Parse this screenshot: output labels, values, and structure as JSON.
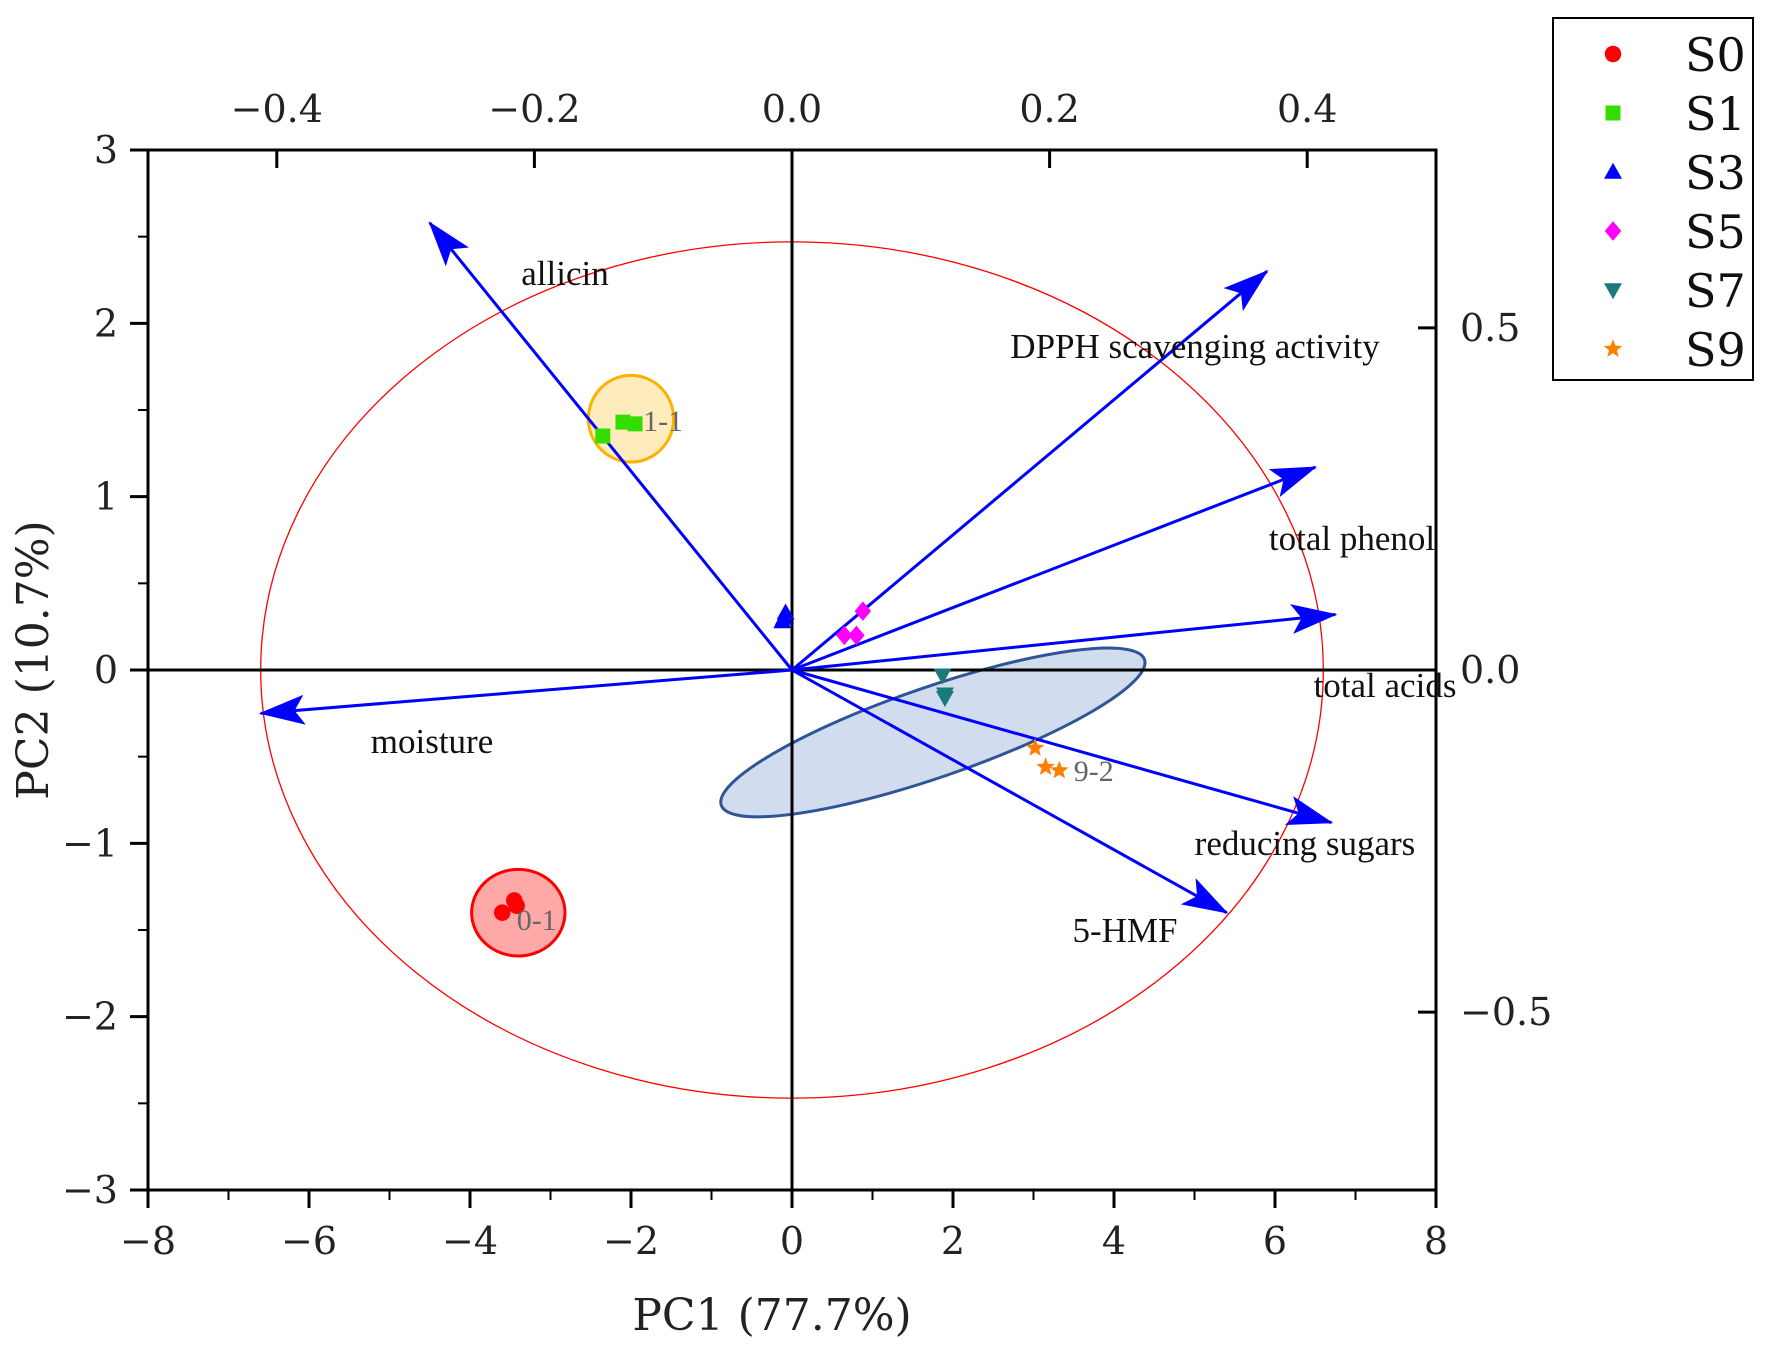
{
  "chart_data": {
    "type": "scatter",
    "title": "",
    "xlabel": "PC1 (77.7%)",
    "ylabel": "PC2 (10.7%)",
    "xlim": [
      -8,
      8
    ],
    "ylim": [
      -3,
      3
    ],
    "x_ticks": [
      -8,
      -6,
      -4,
      -2,
      0,
      2,
      4,
      6,
      8
    ],
    "x_tick_labels": [
      "−8",
      "−6",
      "−4",
      "−2",
      "0",
      "2",
      "4",
      "6",
      "8"
    ],
    "y_ticks": [
      -3,
      -2,
      -1,
      0,
      1,
      2,
      3
    ],
    "y_tick_labels": [
      "−3",
      "−2",
      "−1",
      "0",
      "1",
      "2",
      "3"
    ],
    "top_axis": {
      "range": [
        -0.5,
        0.5
      ],
      "ticks": [
        -0.4,
        -0.2,
        0.0,
        0.2,
        0.4
      ],
      "tick_labels": [
        "−0.4",
        "−0.2",
        "0.0",
        "0.2",
        "0.4"
      ]
    },
    "right_axis": {
      "range": [
        -0.76,
        0.76
      ],
      "ticks": [
        -0.5,
        0.0,
        0.5
      ],
      "tick_labels": [
        "−0.5",
        "0.0",
        "0.5"
      ]
    },
    "grid": false,
    "legend_position": "top-right, outside",
    "series": [
      {
        "name": "S0",
        "marker": "circle",
        "color": "#ff0000",
        "points": [
          [
            -3.6,
            -1.4
          ],
          [
            -3.45,
            -1.33
          ],
          [
            -3.42,
            -1.36
          ]
        ]
      },
      {
        "name": "S1",
        "marker": "square",
        "color": "#33dd00",
        "points": [
          [
            -2.35,
            1.35
          ],
          [
            -2.1,
            1.43
          ],
          [
            -1.95,
            1.42
          ]
        ]
      },
      {
        "name": "S3",
        "marker": "triangle-up",
        "color": "#0000ff",
        "points": [
          [
            -0.12,
            0.28
          ],
          [
            -0.08,
            0.33
          ],
          [
            -0.1,
            0.3
          ]
        ]
      },
      {
        "name": "S5",
        "marker": "diamond",
        "color": "#ff00ff",
        "points": [
          [
            0.65,
            0.2
          ],
          [
            0.8,
            0.2
          ],
          [
            0.88,
            0.34
          ]
        ]
      },
      {
        "name": "S7",
        "marker": "triangle-down",
        "color": "#1a7a7a",
        "points": [
          [
            1.87,
            -0.03
          ],
          [
            1.9,
            -0.14
          ],
          [
            1.9,
            -0.16
          ]
        ]
      },
      {
        "name": "S9",
        "marker": "star",
        "color": "#ff8000",
        "points": [
          [
            3.02,
            -0.45
          ],
          [
            3.15,
            -0.56
          ],
          [
            3.32,
            -0.58
          ]
        ]
      }
    ],
    "loadings": [
      {
        "label": "allicin",
        "x": -4.5,
        "y": 2.58
      },
      {
        "label": "DPPH scavenging activity",
        "x": 5.9,
        "y": 2.3
      },
      {
        "label": "total phenol",
        "x": 6.5,
        "y": 1.17
      },
      {
        "label": "total acids",
        "x": 6.75,
        "y": 0.32
      },
      {
        "label": "moisture",
        "x": -6.6,
        "y": -0.25
      },
      {
        "label": "reducing sugars",
        "x": 6.7,
        "y": -0.88
      },
      {
        "label": "5-HMF",
        "x": 5.4,
        "y": -1.4
      }
    ],
    "confidence_ellipse": {
      "center": [
        0,
        0
      ],
      "rx": 6.6,
      "ry": 2.47,
      "color": "#ff0000"
    },
    "group_ellipses": [
      {
        "label": "0-1",
        "center": [
          -3.4,
          -1.4
        ],
        "rx": 0.58,
        "ry": 0.25,
        "angle": 0,
        "fill": "#ff9999",
        "stroke": "#ff0000"
      },
      {
        "label": "1-1",
        "center": [
          -2.0,
          1.45
        ],
        "rx": 0.53,
        "ry": 0.25,
        "angle": 0,
        "fill": "#ffe9b0",
        "stroke": "#ffb000"
      },
      {
        "label": "9-2",
        "center": [
          1.75,
          -0.36
        ],
        "rx": 2.78,
        "ry": 0.26,
        "angle": -19,
        "fill": "#c9d6ec",
        "stroke": "#2f5597"
      }
    ],
    "annotations": [
      "0-1",
      "1-1",
      "9-2"
    ]
  }
}
